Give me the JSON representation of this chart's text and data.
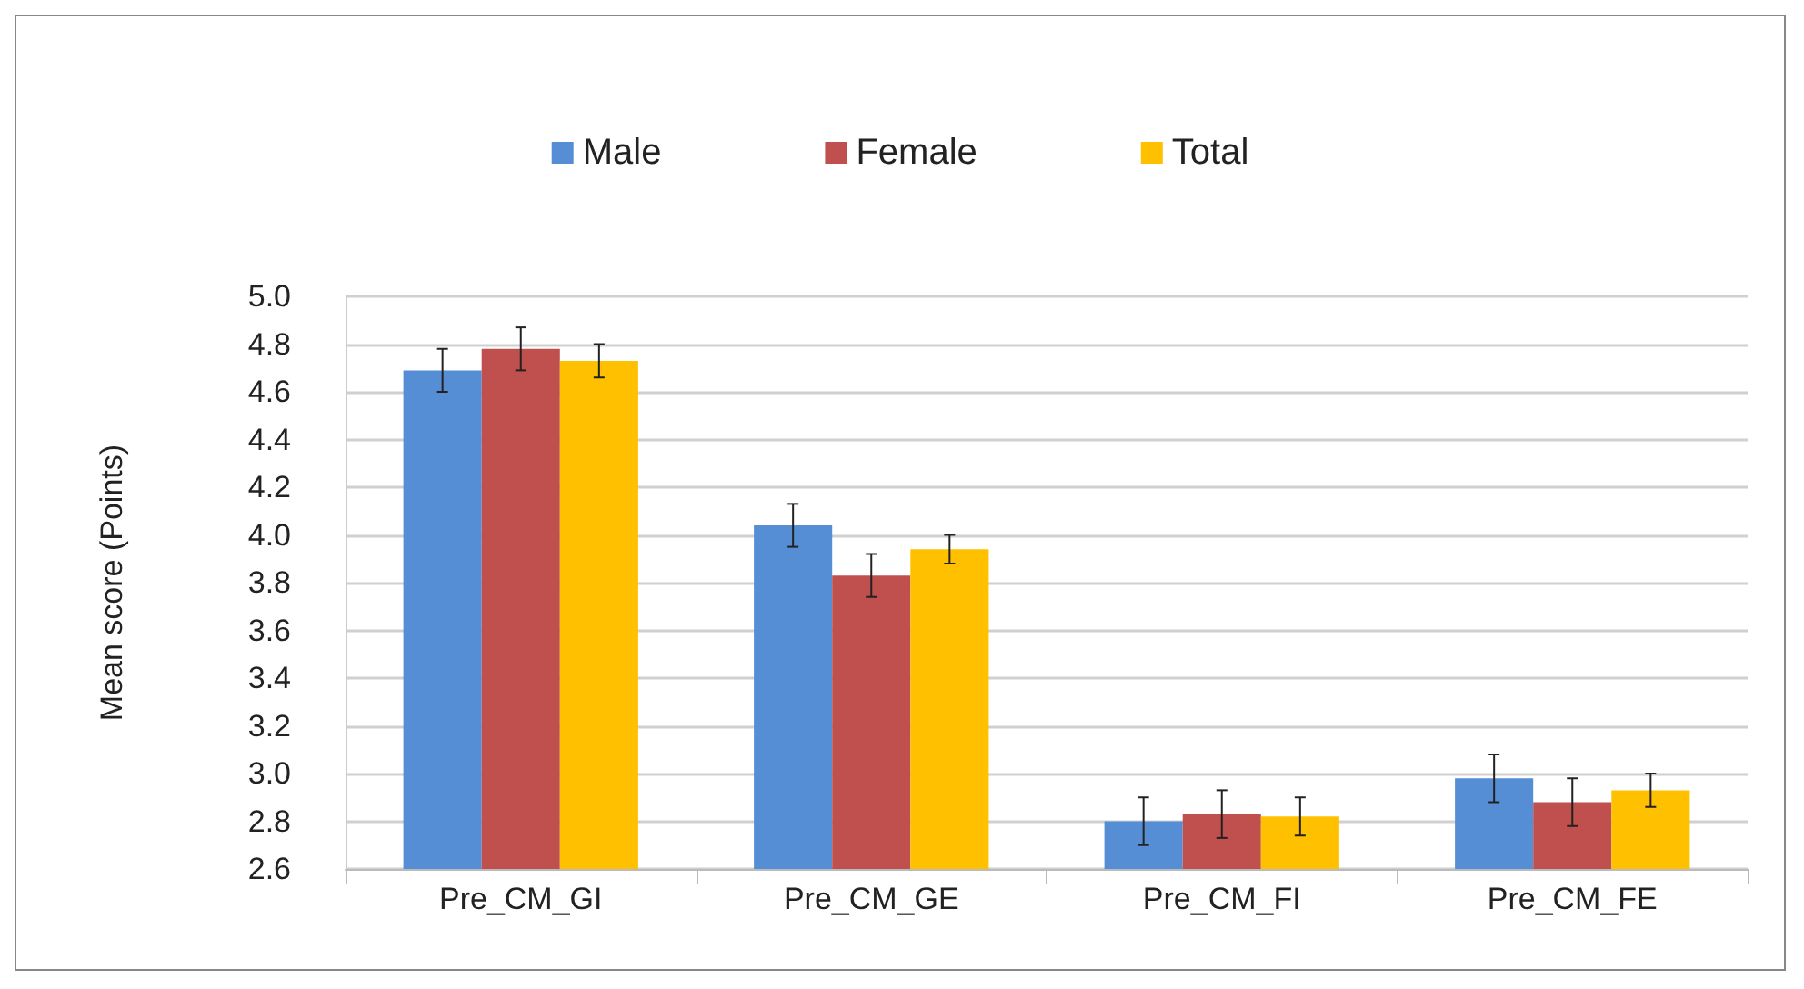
{
  "chart_data": {
    "type": "bar",
    "ylabel": "Mean score (Points)",
    "categories": [
      "Pre_CM_GI",
      "Pre_CM_GE",
      "Pre_CM_FI",
      "Pre_CM_FE"
    ],
    "series": [
      {
        "name": "Male",
        "color": "#558ed5",
        "values": [
          4.69,
          4.04,
          2.8,
          2.98
        ],
        "errors": [
          0.09,
          0.09,
          0.1,
          0.1
        ]
      },
      {
        "name": "Female",
        "color": "#c0504d",
        "values": [
          4.78,
          3.83,
          2.83,
          2.88
        ],
        "errors": [
          0.09,
          0.09,
          0.1,
          0.1
        ]
      },
      {
        "name": "Total",
        "color": "#ffc000",
        "values": [
          4.73,
          3.94,
          2.82,
          2.93
        ],
        "errors": [
          0.07,
          0.06,
          0.08,
          0.07
        ]
      }
    ],
    "ylim": [
      2.6,
      5.0
    ],
    "yticks": [
      2.6,
      2.8,
      {
        "value": 3,
        "label": "3.0"
      },
      3.2,
      3.4,
      3.6,
      3.8,
      {
        "value": 4,
        "label": "4.0"
      },
      4.2,
      4.4,
      4.6,
      4.8,
      {
        "value": 5,
        "label": "5.0"
      }
    ],
    "grid": "y",
    "legend": "top"
  }
}
